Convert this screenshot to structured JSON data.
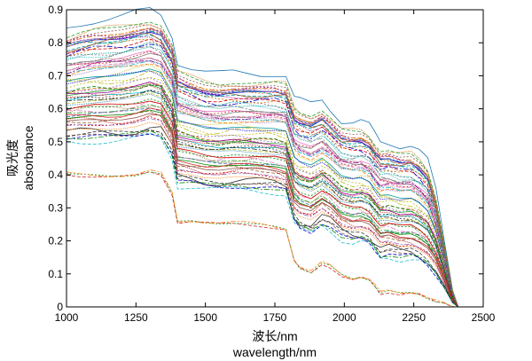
{
  "chart_data": {
    "type": "line",
    "title": "",
    "xlabel_cn": "波长/nm",
    "xlabel_en": "wavelength/nm",
    "ylabel_cn": "吸光度",
    "ylabel_en": "absorbance",
    "xlim": [
      1000,
      2500
    ],
    "ylim": [
      0,
      0.9
    ],
    "x_ticks": [
      "1000",
      "1250",
      "1500",
      "1750",
      "2000",
      "2250",
      "2500"
    ],
    "y_ticks": [
      "0",
      "0.1",
      "0.2",
      "0.3",
      "0.4",
      "0.5",
      "0.6",
      "0.7",
      "0.8",
      "0.9"
    ],
    "grid": false,
    "legend": "none",
    "n_spectra": 72,
    "spectrum_profile": {
      "wavelength": [
        1000,
        1050,
        1100,
        1150,
        1200,
        1250,
        1300,
        1340,
        1380,
        1400,
        1450,
        1500,
        1550,
        1600,
        1650,
        1700,
        1750,
        1790,
        1820,
        1840,
        1880,
        1920,
        1950,
        1990,
        2030,
        2060,
        2090,
        2110,
        2130,
        2160,
        2200,
        2240,
        2270,
        2300,
        2330,
        2360,
        2390,
        2410
      ],
      "top_spectrum": [
        0.84,
        0.855,
        0.865,
        0.87,
        0.875,
        0.885,
        0.893,
        0.88,
        0.82,
        0.74,
        0.72,
        0.705,
        0.7,
        0.705,
        0.705,
        0.705,
        0.707,
        0.7,
        0.63,
        0.62,
        0.61,
        0.625,
        0.6,
        0.565,
        0.56,
        0.56,
        0.545,
        0.52,
        0.5,
        0.5,
        0.49,
        0.49,
        0.47,
        0.44,
        0.35,
        0.2,
        0.05,
        0.0
      ],
      "bottom_spectrum": [
        0.4,
        0.395,
        0.39,
        0.385,
        0.385,
        0.39,
        0.405,
        0.4,
        0.34,
        0.25,
        0.25,
        0.245,
        0.245,
        0.25,
        0.25,
        0.245,
        0.235,
        0.225,
        0.13,
        0.11,
        0.1,
        0.13,
        0.12,
        0.09,
        0.075,
        0.08,
        0.075,
        0.06,
        0.04,
        0.045,
        0.035,
        0.035,
        0.03,
        0.02,
        0.015,
        0.01,
        0.0,
        0.0
      ],
      "endpoint_wavelength": 2410
    },
    "series_colors": [
      "#1f77b4",
      "#d62728",
      "#2ca02c",
      "#ff7f0e",
      "#9467bd",
      "#17becf",
      "#8c564b",
      "#e377c2",
      "#bcbd22",
      "#7f7f7f",
      "#0000cc",
      "#cc0000",
      "#008800",
      "#cc6600",
      "#990099",
      "#009999",
      "#996633",
      "#333333"
    ]
  }
}
